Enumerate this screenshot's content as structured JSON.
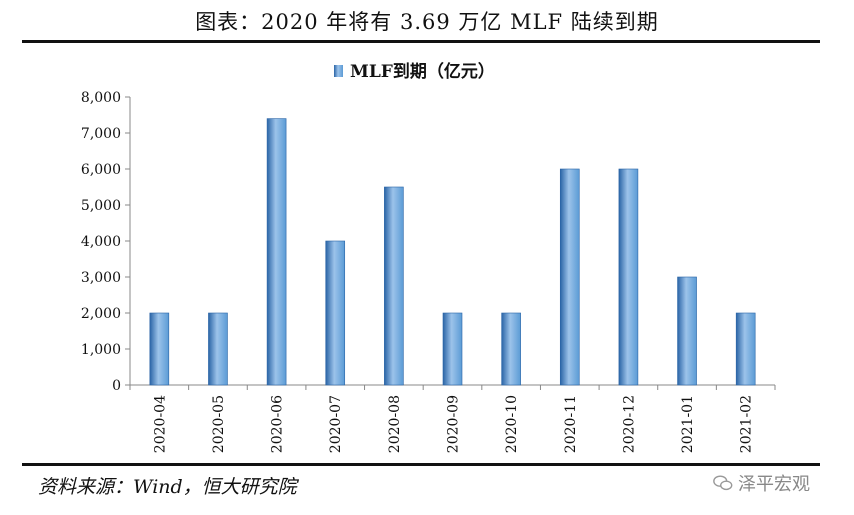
{
  "figure": {
    "title": "图表：2020 年将有 3.69 万亿 MLF 陆续到期",
    "source": "资料来源：Wind，恒大研究院",
    "watermark": "泽平宏观"
  },
  "chart_data": {
    "type": "bar",
    "legend": "MLF到期（亿元）",
    "legend_position": "top-center",
    "categories": [
      "2020-04",
      "2020-05",
      "2020-06",
      "2020-07",
      "2020-08",
      "2020-09",
      "2020-10",
      "2020-11",
      "2020-12",
      "2021-01",
      "2021-02"
    ],
    "series": [
      {
        "name": "MLF到期（亿元）",
        "values": [
          2000,
          2000,
          7400,
          4000,
          5500,
          2000,
          2000,
          6000,
          6000,
          3000,
          2000
        ]
      }
    ],
    "ylim": [
      0,
      8000
    ],
    "yticks": [
      "0",
      "1,000",
      "2,000",
      "3,000",
      "4,000",
      "5,000",
      "6,000",
      "7,000",
      "8,000"
    ],
    "grid": false,
    "colors": {
      "bar_dark": "#2a64a6",
      "bar_mid": "#5b9bd5",
      "bar_light": "#9cc3ea"
    }
  }
}
